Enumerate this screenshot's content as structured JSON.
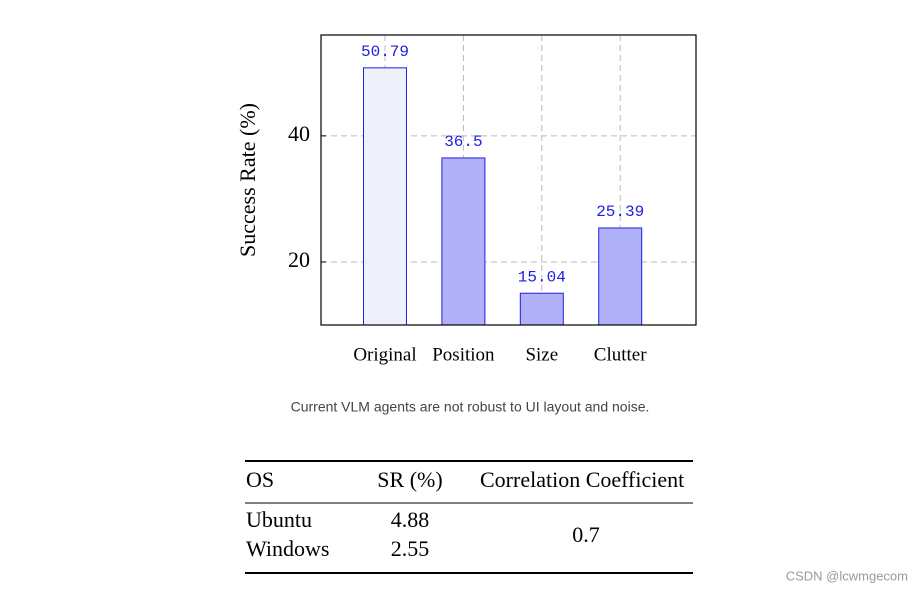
{
  "chart_data": {
    "type": "bar",
    "y_label": "Success Rate (%)",
    "categories": [
      "Original",
      "Position",
      "Size",
      "Clutter"
    ],
    "values": [
      50.79,
      36.5,
      15.04,
      25.39
    ],
    "colors": [
      "#eef0fc",
      "#b1b1f8",
      "#b1b1f8",
      "#b1b1f8"
    ],
    "edge_color": "#1f1fe0",
    "label_color": "#1f1fe0",
    "ylim": [
      10,
      56
    ],
    "yticks": [
      20,
      40
    ],
    "grid": true
  },
  "caption": "Current VLM agents are not robust to UI layout and noise.",
  "table": {
    "header": [
      "OS",
      "SR (%)",
      "Correlation Coefficient"
    ],
    "rows": [
      [
        "Ubuntu",
        "4.88"
      ],
      [
        "Windows",
        "2.55"
      ]
    ],
    "merged": "0.7"
  },
  "watermark": "CSDN @lcwmgecom"
}
